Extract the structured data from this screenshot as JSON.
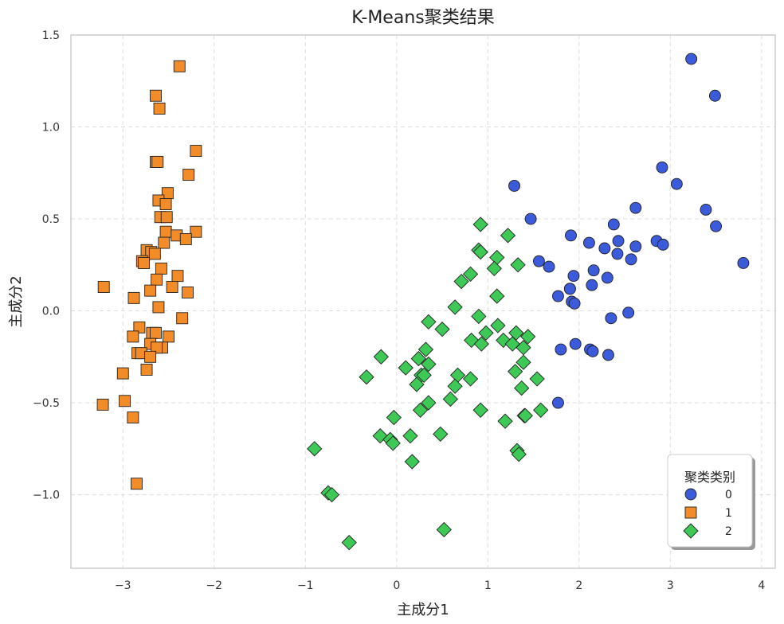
{
  "chart_data": {
    "type": "scatter",
    "title": "K-Means聚类结果",
    "xlabel": "主成分1",
    "ylabel": "主成分2",
    "xlim": [
      -3.57,
      4.15
    ],
    "ylim": [
      -1.4,
      1.5
    ],
    "xticks": [
      -3,
      -2,
      -1,
      0,
      1,
      2,
      3,
      4
    ],
    "yticks": [
      -1.0,
      -0.5,
      0.0,
      0.5,
      1.0,
      1.5
    ],
    "xtick_labels": [
      "−3",
      "−2",
      "−1",
      "0",
      "1",
      "2",
      "3",
      "4"
    ],
    "ytick_labels": [
      "−1.0",
      "−0.5",
      "0.0",
      "0.5",
      "1.0",
      "1.5"
    ],
    "grid": true,
    "legend": {
      "title": "聚类类别",
      "placement": "bottom-right"
    },
    "series": [
      {
        "name": "0",
        "marker": "circle",
        "color": "#3b5bdb",
        "points": [
          [
            3.23,
            1.37
          ],
          [
            3.49,
            1.17
          ],
          [
            2.91,
            0.78
          ],
          [
            3.07,
            0.69
          ],
          [
            3.39,
            0.55
          ],
          [
            3.5,
            0.46
          ],
          [
            3.8,
            0.26
          ],
          [
            1.29,
            0.68
          ],
          [
            1.47,
            0.5
          ],
          [
            2.62,
            0.56
          ],
          [
            2.38,
            0.47
          ],
          [
            1.91,
            0.41
          ],
          [
            2.11,
            0.37
          ],
          [
            2.43,
            0.38
          ],
          [
            2.85,
            0.38
          ],
          [
            2.92,
            0.36
          ],
          [
            2.62,
            0.35
          ],
          [
            2.28,
            0.34
          ],
          [
            2.42,
            0.31
          ],
          [
            2.57,
            0.28
          ],
          [
            1.56,
            0.27
          ],
          [
            1.67,
            0.24
          ],
          [
            2.16,
            0.22
          ],
          [
            1.94,
            0.19
          ],
          [
            2.31,
            0.18
          ],
          [
            2.14,
            0.14
          ],
          [
            1.9,
            0.12
          ],
          [
            1.9,
            0.12
          ],
          [
            1.77,
            0.08
          ],
          [
            1.92,
            0.05
          ],
          [
            1.95,
            0.04
          ],
          [
            2.35,
            -0.04
          ],
          [
            2.54,
            -0.01
          ],
          [
            1.8,
            -0.21
          ],
          [
            1.96,
            -0.18
          ],
          [
            2.12,
            -0.21
          ],
          [
            2.15,
            -0.22
          ],
          [
            2.32,
            -0.24
          ],
          [
            1.77,
            -0.5
          ]
        ]
      },
      {
        "name": "1",
        "marker": "square",
        "color": "#f28c28",
        "points": [
          [
            -2.38,
            1.33
          ],
          [
            -2.64,
            1.17
          ],
          [
            -2.6,
            1.1
          ],
          [
            -2.64,
            0.81
          ],
          [
            -2.62,
            0.81
          ],
          [
            -2.2,
            0.87
          ],
          [
            -2.28,
            0.74
          ],
          [
            -2.51,
            0.64
          ],
          [
            -2.61,
            0.6
          ],
          [
            -2.53,
            0.58
          ],
          [
            -2.59,
            0.51
          ],
          [
            -2.52,
            0.51
          ],
          [
            -2.53,
            0.43
          ],
          [
            -2.2,
            0.43
          ],
          [
            -2.41,
            0.41
          ],
          [
            -2.31,
            0.39
          ],
          [
            -2.55,
            0.37
          ],
          [
            -2.74,
            0.33
          ],
          [
            -2.69,
            0.32
          ],
          [
            -2.65,
            0.31
          ],
          [
            -2.79,
            0.27
          ],
          [
            -2.77,
            0.26
          ],
          [
            -2.58,
            0.23
          ],
          [
            -2.4,
            0.19
          ],
          [
            -2.63,
            0.17
          ],
          [
            -3.21,
            0.13
          ],
          [
            -2.46,
            0.13
          ],
          [
            -2.7,
            0.11
          ],
          [
            -2.29,
            0.1
          ],
          [
            -2.88,
            0.07
          ],
          [
            -2.61,
            0.02
          ],
          [
            -2.35,
            -0.04
          ],
          [
            -2.82,
            -0.09
          ],
          [
            -2.68,
            -0.12
          ],
          [
            -2.64,
            -0.12
          ],
          [
            -2.89,
            -0.14
          ],
          [
            -2.5,
            -0.14
          ],
          [
            -2.7,
            -0.18
          ],
          [
            -2.57,
            -0.2
          ],
          [
            -2.63,
            -0.2
          ],
          [
            -2.84,
            -0.23
          ],
          [
            -2.8,
            -0.23
          ],
          [
            -2.7,
            -0.25
          ],
          [
            -2.74,
            -0.32
          ],
          [
            -3.0,
            -0.34
          ],
          [
            -2.98,
            -0.49
          ],
          [
            -3.22,
            -0.51
          ],
          [
            -2.89,
            -0.58
          ],
          [
            -2.85,
            -0.94
          ]
        ]
      },
      {
        "name": "2",
        "marker": "diamond",
        "color": "#3ec957",
        "points": [
          [
            0.92,
            0.47
          ],
          [
            1.22,
            0.41
          ],
          [
            0.9,
            0.33
          ],
          [
            0.92,
            0.32
          ],
          [
            1.1,
            0.29
          ],
          [
            1.33,
            0.25
          ],
          [
            1.07,
            0.23
          ],
          [
            0.81,
            0.2
          ],
          [
            0.71,
            0.16
          ],
          [
            1.1,
            0.08
          ],
          [
            0.64,
            0.02
          ],
          [
            0.9,
            -0.03
          ],
          [
            0.35,
            -0.06
          ],
          [
            0.5,
            -0.1
          ],
          [
            1.11,
            -0.08
          ],
          [
            0.98,
            -0.12
          ],
          [
            1.31,
            -0.12
          ],
          [
            1.44,
            -0.14
          ],
          [
            0.82,
            -0.16
          ],
          [
            1.17,
            -0.16
          ],
          [
            0.93,
            -0.18
          ],
          [
            1.27,
            -0.18
          ],
          [
            0.32,
            -0.21
          ],
          [
            1.39,
            -0.2
          ],
          [
            -0.17,
            -0.25
          ],
          [
            0.24,
            -0.26
          ],
          [
            0.35,
            -0.29
          ],
          [
            0.1,
            -0.31
          ],
          [
            1.39,
            -0.28
          ],
          [
            1.3,
            -0.33
          ],
          [
            0.27,
            -0.35
          ],
          [
            0.3,
            -0.35
          ],
          [
            0.67,
            -0.35
          ],
          [
            -0.33,
            -0.36
          ],
          [
            0.81,
            -0.37
          ],
          [
            1.54,
            -0.37
          ],
          [
            0.22,
            -0.4
          ],
          [
            0.64,
            -0.41
          ],
          [
            1.37,
            -0.42
          ],
          [
            0.35,
            -0.5
          ],
          [
            0.59,
            -0.48
          ],
          [
            0.26,
            -0.54
          ],
          [
            0.92,
            -0.54
          ],
          [
            1.58,
            -0.54
          ],
          [
            -0.03,
            -0.58
          ],
          [
            1.4,
            -0.57
          ],
          [
            1.41,
            -0.57
          ],
          [
            1.19,
            -0.6
          ],
          [
            0.48,
            -0.67
          ],
          [
            -0.18,
            -0.68
          ],
          [
            0.15,
            -0.68
          ],
          [
            -0.07,
            -0.7
          ],
          [
            -0.04,
            -0.72
          ],
          [
            1.32,
            -0.76
          ],
          [
            1.34,
            -0.78
          ],
          [
            -0.9,
            -0.75
          ],
          [
            0.17,
            -0.82
          ],
          [
            -0.75,
            -0.99
          ],
          [
            -0.71,
            -1.0
          ],
          [
            0.52,
            -1.19
          ],
          [
            -0.52,
            -1.26
          ]
        ]
      }
    ]
  }
}
